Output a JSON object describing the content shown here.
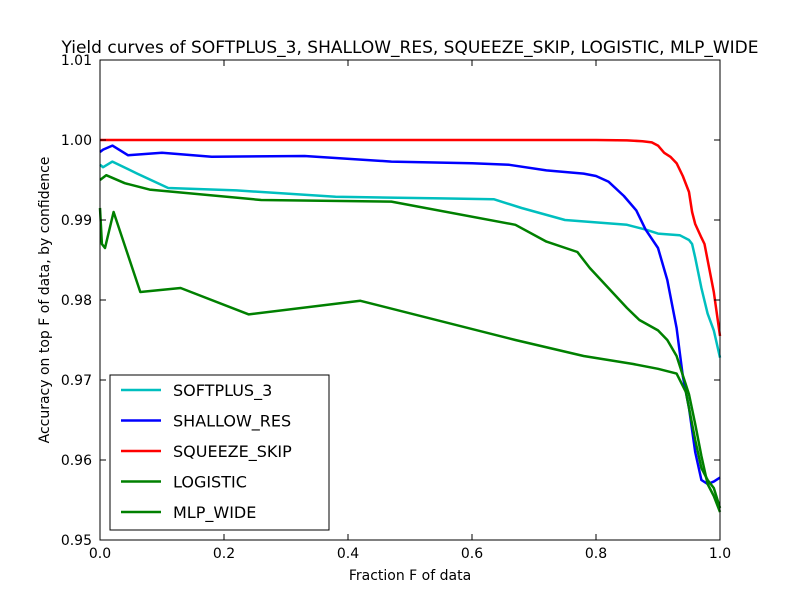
{
  "chart_data": {
    "type": "line",
    "title": "Yield curves of SOFTPLUS_3, SHALLOW_RES, SQUEEZE_SKIP, LOGISTIC, MLP_WIDE",
    "xlabel": "Fraction F of data",
    "ylabel": "Accuracy on top F of data, by confidence",
    "xlim": [
      0.0,
      1.0
    ],
    "ylim": [
      0.95,
      1.01
    ],
    "xticks": [
      "0.0",
      "0.2",
      "0.4",
      "0.6",
      "0.8",
      "1.0"
    ],
    "yticks": [
      "0.95",
      "0.96",
      "0.97",
      "0.98",
      "0.99",
      "1.00",
      "1.01"
    ],
    "grid": false,
    "legend": "lower-left",
    "series": [
      {
        "name": "SOFTPLUS_3",
        "color": "#00bfbf",
        "x": [
          0.0,
          0.005,
          0.02,
          0.06,
          0.11,
          0.22,
          0.38,
          0.55,
          0.635,
          0.68,
          0.75,
          0.85,
          0.88,
          0.9,
          0.935,
          0.95,
          0.955,
          0.96,
          0.97,
          0.98,
          0.99,
          1.0
        ],
        "y": [
          0.9969,
          0.9966,
          0.9973,
          0.9958,
          0.994,
          0.9937,
          0.9929,
          0.9927,
          0.9926,
          0.9915,
          0.99,
          0.9894,
          0.9888,
          0.9883,
          0.9881,
          0.9875,
          0.987,
          0.9853,
          0.9815,
          0.9783,
          0.9762,
          0.9728
        ]
      },
      {
        "name": "SHALLOW_RES",
        "color": "#0000ff",
        "x": [
          0.0,
          0.005,
          0.02,
          0.045,
          0.1,
          0.18,
          0.33,
          0.47,
          0.6,
          0.66,
          0.72,
          0.78,
          0.8,
          0.82,
          0.845,
          0.865,
          0.88,
          0.9,
          0.915,
          0.93,
          0.94,
          0.95,
          0.96,
          0.97,
          0.98,
          0.99,
          1.0
        ],
        "y": [
          0.9985,
          0.9988,
          0.9993,
          0.9981,
          0.9984,
          0.9979,
          0.998,
          0.9973,
          0.9971,
          0.9969,
          0.9962,
          0.9958,
          0.9955,
          0.9948,
          0.993,
          0.9912,
          0.9888,
          0.9865,
          0.9825,
          0.9765,
          0.9705,
          0.9665,
          0.961,
          0.9575,
          0.957,
          0.9573,
          0.9578
        ]
      },
      {
        "name": "SQUEEZE_SKIP",
        "color": "#ff0000",
        "x": [
          0.0,
          0.2,
          0.4,
          0.6,
          0.8,
          0.85,
          0.875,
          0.89,
          0.9,
          0.91,
          0.92,
          0.93,
          0.94,
          0.95,
          0.955,
          0.96,
          0.97,
          0.975,
          0.98,
          0.99,
          1.0
        ],
        "y": [
          1.0,
          1.0,
          1.0,
          1.0,
          1.0,
          0.99995,
          0.99985,
          0.9997,
          0.9993,
          0.9984,
          0.9979,
          0.9971,
          0.9955,
          0.9935,
          0.991,
          0.9895,
          0.9878,
          0.987,
          0.985,
          0.981,
          0.9755
        ]
      },
      {
        "name": "LOGISTIC",
        "color": "#008000",
        "x": [
          0.0,
          0.01,
          0.04,
          0.08,
          0.26,
          0.47,
          0.67,
          0.72,
          0.77,
          0.79,
          0.82,
          0.85,
          0.87,
          0.9,
          0.915,
          0.93,
          0.94,
          0.95,
          0.96,
          0.97,
          0.98,
          0.99,
          1.0
        ],
        "y": [
          0.995,
          0.9956,
          0.9946,
          0.9938,
          0.9925,
          0.9923,
          0.9894,
          0.9873,
          0.986,
          0.984,
          0.9815,
          0.979,
          0.9775,
          0.9762,
          0.975,
          0.973,
          0.9706,
          0.9682,
          0.9645,
          0.9605,
          0.957,
          0.9555,
          0.9535
        ]
      },
      {
        "name": "MLP_WIDE",
        "color": "#008000",
        "x": [
          0.0,
          0.003,
          0.008,
          0.022,
          0.065,
          0.13,
          0.24,
          0.42,
          0.67,
          0.78,
          0.86,
          0.9,
          0.93,
          0.945,
          0.96,
          0.97,
          0.98,
          0.99,
          1.0
        ],
        "y": [
          0.9915,
          0.987,
          0.9865,
          0.991,
          0.981,
          0.9815,
          0.9782,
          0.9799,
          0.975,
          0.973,
          0.972,
          0.9714,
          0.9708,
          0.9685,
          0.9625,
          0.959,
          0.9575,
          0.9565,
          0.954
        ]
      }
    ]
  }
}
